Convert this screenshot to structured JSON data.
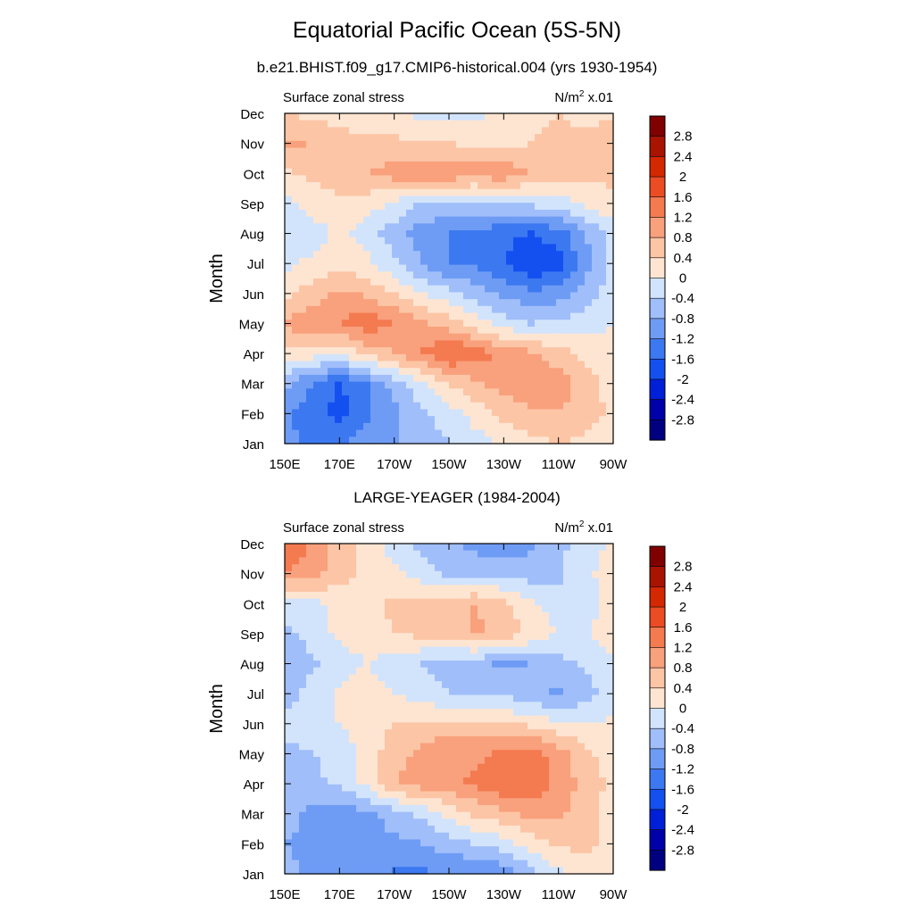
{
  "title": "Equatorial Pacific Ocean (5S-5N)",
  "colors": [
    "#000080",
    "#0000a8",
    "#0020d8",
    "#1450f0",
    "#3c78f0",
    "#6e9cf5",
    "#a0befa",
    "#d2e4fc",
    "#fde5d2",
    "#fcc5a6",
    "#f9a07c",
    "#f47a50",
    "#eb4c24",
    "#d42800",
    "#a81400",
    "#800000"
  ],
  "chart_data": [
    {
      "type": "heatmap",
      "title": "b.e21.BHIST.f09_g17.CMIP6-historical.004 (yrs 1930-1954)",
      "left_label": "Surface zonal stress",
      "units_label": "N/m",
      "units_sup": "2",
      "units_scale": "x.01",
      "ylabel": "Month",
      "xlabel": "",
      "x_ticks": [
        "150E",
        "170E",
        "170W",
        "150W",
        "130W",
        "110W",
        "90W"
      ],
      "y_ticks": [
        "Jan",
        "Feb",
        "Mar",
        "Apr",
        "May",
        "Jun",
        "Jul",
        "Aug",
        "Sep",
        "Oct",
        "Nov",
        "Dec"
      ],
      "colorbar_labels": [
        "2.8",
        "2.4",
        "2",
        "1.6",
        "1.2",
        "0.8",
        "0.4",
        "0",
        "-0.4",
        "-0.8",
        "-1.2",
        "-1.6",
        "-2",
        "-2.4",
        "-2.8"
      ],
      "x_lon": [
        150,
        160,
        170,
        180,
        190,
        200,
        210,
        220,
        230,
        240,
        250,
        260,
        270
      ],
      "values": [
        [
          -1.0,
          -1.4,
          -1.3,
          -1.0,
          -0.8,
          -0.6,
          -0.4,
          -0.2,
          0.1,
          0.3,
          0.4,
          0.3,
          0.1
        ],
        [
          -1.1,
          -1.5,
          -1.7,
          -1.3,
          -0.9,
          -0.5,
          -0.2,
          0.2,
          0.5,
          0.7,
          0.8,
          0.6,
          0.3
        ],
        [
          -0.7,
          -1.2,
          -1.7,
          -1.2,
          -0.6,
          -0.1,
          0.4,
          0.7,
          1.0,
          1.1,
          1.0,
          0.6,
          0.2
        ],
        [
          0.3,
          0.2,
          0.1,
          0.5,
          0.8,
          1.2,
          1.7,
          1.4,
          1.1,
          0.9,
          0.6,
          0.3,
          0.1
        ],
        [
          0.9,
          1.1,
          1.2,
          1.5,
          1.2,
          0.9,
          0.6,
          0.2,
          -0.2,
          -0.4,
          -0.3,
          -0.2,
          0.0
        ],
        [
          0.3,
          0.6,
          0.9,
          0.7,
          0.4,
          0.0,
          -0.3,
          -0.6,
          -0.9,
          -1.1,
          -1.0,
          -0.6,
          -0.2
        ],
        [
          -0.1,
          0.1,
          0.3,
          0.1,
          -0.3,
          -0.8,
          -1.2,
          -1.3,
          -1.6,
          -2.0,
          -1.8,
          -1.0,
          -0.3
        ],
        [
          -0.4,
          -0.2,
          0.1,
          -0.2,
          -0.6,
          -1.0,
          -1.2,
          -1.3,
          -1.5,
          -1.6,
          -1.4,
          -0.8,
          -0.2
        ],
        [
          -0.2,
          0.2,
          0.3,
          0.2,
          -0.1,
          -0.4,
          -0.5,
          -0.5,
          -0.4,
          -0.3,
          -0.2,
          0.1,
          0.3
        ],
        [
          0.3,
          0.5,
          0.6,
          0.8,
          1.0,
          1.1,
          1.1,
          1.0,
          1.1,
          0.8,
          0.6,
          0.5,
          0.5
        ],
        [
          0.9,
          0.8,
          0.6,
          0.5,
          0.5,
          0.5,
          0.4,
          0.3,
          0.3,
          0.4,
          0.5,
          0.5,
          0.5
        ],
        [
          0.4,
          0.3,
          0.2,
          0.1,
          0.0,
          -0.1,
          -0.2,
          -0.1,
          0.1,
          0.3,
          0.4,
          0.3,
          0.4
        ]
      ]
    },
    {
      "type": "heatmap",
      "title": "LARGE-YEAGER (1984-2004)",
      "left_label": "Surface zonal stress",
      "units_label": "N/m",
      "units_sup": "2",
      "units_scale": "x.01",
      "ylabel": "Month",
      "xlabel": "",
      "x_ticks": [
        "150E",
        "170E",
        "170W",
        "150W",
        "130W",
        "110W",
        "90W"
      ],
      "y_ticks": [
        "Jan",
        "Feb",
        "Mar",
        "Apr",
        "May",
        "Jun",
        "Jul",
        "Aug",
        "Sep",
        "Oct",
        "Nov",
        "Dec"
      ],
      "colorbar_labels": [
        "2.8",
        "2.4",
        "2",
        "1.6",
        "1.2",
        "0.8",
        "0.4",
        "0",
        "-0.4",
        "-0.8",
        "-1.2",
        "-1.6",
        "-2",
        "-2.4",
        "-2.8"
      ],
      "x_lon": [
        150,
        160,
        170,
        180,
        190,
        200,
        210,
        220,
        230,
        240,
        250,
        260,
        270
      ],
      "values": [
        [
          -0.6,
          -0.9,
          -0.9,
          -1.0,
          -1.3,
          -1.3,
          -1.1,
          -1.3,
          -1.1,
          -0.6,
          -0.1,
          0.2,
          0.3
        ],
        [
          -0.8,
          -1.0,
          -1.1,
          -1.0,
          -0.9,
          -0.8,
          -0.6,
          -0.4,
          -0.2,
          0.2,
          0.5,
          0.5,
          0.3
        ],
        [
          -0.6,
          -0.9,
          -1.0,
          -0.9,
          -0.6,
          -0.3,
          0.1,
          0.5,
          0.7,
          0.9,
          0.9,
          0.6,
          0.2
        ],
        [
          -0.5,
          -0.5,
          -0.3,
          0.1,
          0.8,
          1.0,
          1.1,
          1.3,
          1.6,
          1.6,
          1.1,
          0.6,
          0.3
        ],
        [
          -0.5,
          -0.4,
          -0.3,
          0.2,
          0.6,
          0.9,
          1.2,
          1.1,
          1.3,
          1.4,
          1.0,
          0.5,
          0.2
        ],
        [
          -0.3,
          -0.2,
          0.0,
          0.2,
          0.4,
          0.5,
          0.5,
          0.5,
          0.4,
          0.3,
          0.1,
          0.0,
          0.1
        ],
        [
          -0.6,
          -0.2,
          0.1,
          0.2,
          0.0,
          -0.2,
          -0.4,
          -0.5,
          -0.5,
          -0.7,
          -0.9,
          -0.6,
          -0.2
        ],
        [
          -0.8,
          -0.5,
          -0.2,
          0.0,
          -0.2,
          -0.4,
          -0.6,
          -0.7,
          -0.9,
          -0.8,
          -0.6,
          -0.3,
          0.0
        ],
        [
          -0.5,
          -0.2,
          0.1,
          0.2,
          0.4,
          0.5,
          0.6,
          0.9,
          0.7,
          0.3,
          0.0,
          0.0,
          0.1
        ],
        [
          -0.3,
          -0.1,
          0.1,
          0.3,
          0.5,
          0.6,
          0.7,
          0.8,
          0.5,
          0.1,
          -0.2,
          -0.1,
          0.1
        ],
        [
          1.2,
          1.0,
          0.6,
          0.3,
          0.1,
          -0.2,
          -0.5,
          -0.6,
          -0.5,
          -0.6,
          -0.5,
          -0.1,
          0.2
        ],
        [
          1.4,
          1.2,
          0.6,
          0.2,
          -0.2,
          -0.5,
          -0.7,
          -0.9,
          -1.2,
          -0.9,
          -0.5,
          -0.2,
          0.1
        ]
      ]
    }
  ]
}
